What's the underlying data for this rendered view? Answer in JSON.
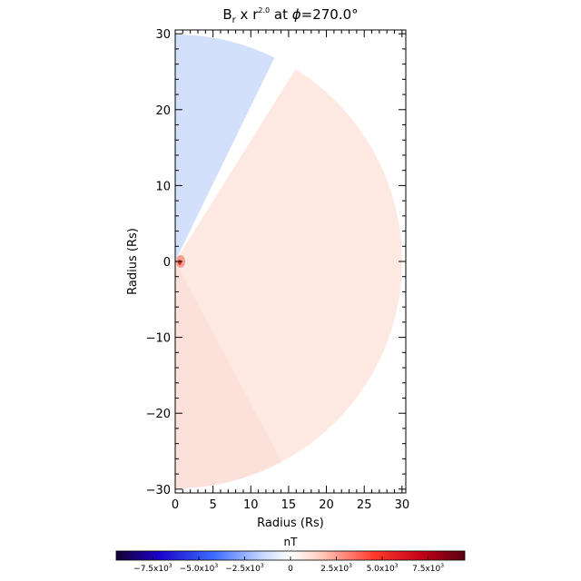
{
  "chart_data": {
    "type": "heatmap",
    "title": {
      "base": "B",
      "subscript": "r",
      "operator": " x r",
      "superscript": "2.0",
      "at": " at ",
      "symbol": "ϕ",
      "value": "=270.0°"
    },
    "xlabel": "Radius (Rs)",
    "ylabel": "Radius (Rs)",
    "xlim": [
      0,
      30.5
    ],
    "ylim": [
      -30.5,
      30.5
    ],
    "xticks": [
      0,
      5,
      10,
      15,
      20,
      25,
      30
    ],
    "yticks": [
      -30,
      -20,
      -10,
      0,
      10,
      20,
      30
    ],
    "domain_radius": 30,
    "field": {
      "description_values": "half-disk colored by Br*r^2; negative sector in upper region, positive elsewhere",
      "boundary_angles_deg": [
        58,
        64
      ],
      "negative_color": "#d2e0fb",
      "neutral_color": "#ffffff",
      "positive_color": "#fde8e2",
      "positive_far_color": "#fbe1d9"
    },
    "colorbar": {
      "label": "nT",
      "range": [
        -9500,
        9500
      ],
      "ticks": [
        {
          "value": -7500,
          "mant": "−7.5x10",
          "exp": "3"
        },
        {
          "value": -5000,
          "mant": "−5.0x10",
          "exp": "3"
        },
        {
          "value": -2500,
          "mant": "−2.5x10",
          "exp": "3"
        },
        {
          "value": 0,
          "mant": "0",
          "exp": ""
        },
        {
          "value": 2500,
          "mant": "2.5x10",
          "exp": "3"
        },
        {
          "value": 5000,
          "mant": "5.0x10",
          "exp": "3"
        },
        {
          "value": 7500,
          "mant": "7.5x10",
          "exp": "3"
        }
      ],
      "colormap": [
        "#140032",
        "#1a00c8",
        "#3c6cff",
        "#c8d8ff",
        "#ffffff",
        "#ffd0c4",
        "#ff3a2a",
        "#c00018",
        "#5a0010"
      ]
    }
  }
}
